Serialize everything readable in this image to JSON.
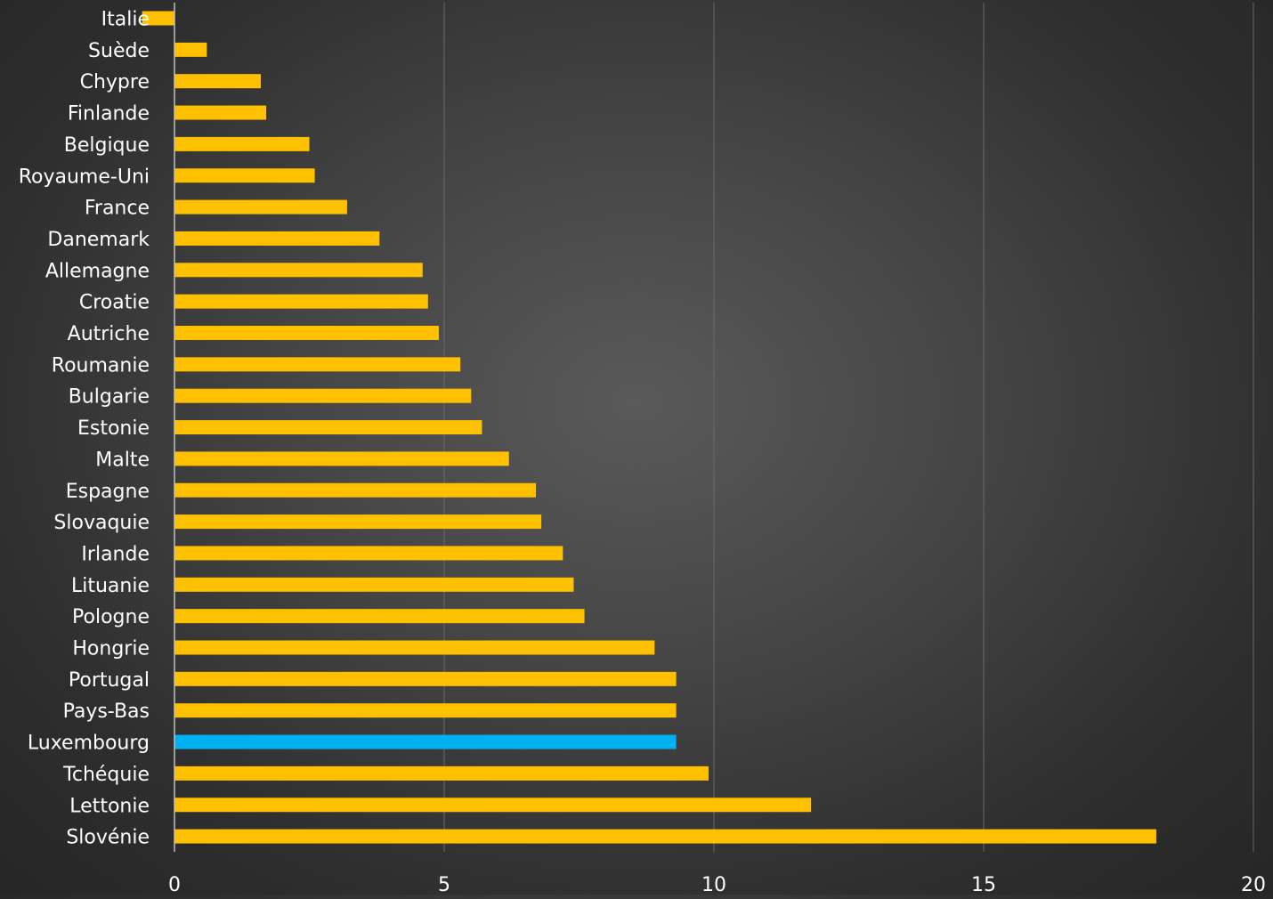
{
  "chart_data": {
    "type": "bar",
    "orientation": "horizontal",
    "categories": [
      "Italie",
      "Suède",
      "Chypre",
      "Finlande",
      "Belgique",
      "Royaume-Uni",
      "France",
      "Danemark",
      "Allemagne",
      "Croatie",
      "Autriche",
      "Roumanie",
      "Bulgarie",
      "Estonie",
      "Malte",
      "Espagne",
      "Slovaquie",
      "Irlande",
      "Lituanie",
      "Pologne",
      "Hongrie",
      "Portugal",
      "Pays-Bas",
      "Luxembourg",
      "Tchéquie",
      "Lettonie",
      "Slovénie"
    ],
    "values": [
      -0.6,
      0.6,
      1.6,
      1.7,
      2.5,
      2.6,
      3.2,
      3.8,
      4.6,
      4.7,
      4.9,
      5.3,
      5.5,
      5.7,
      6.2,
      6.7,
      6.8,
      7.2,
      7.4,
      7.6,
      8.9,
      9.3,
      9.3,
      9.3,
      9.9,
      11.8,
      18.2
    ],
    "highlight": "Luxembourg",
    "colors": {
      "bar": "#FFC000",
      "highlight": "#00B0F0",
      "grid": "#6a6a6a",
      "text": "#ffffff"
    },
    "xlim": [
      0,
      20
    ],
    "xticks": [
      0,
      5,
      10,
      15,
      20
    ],
    "grid": true,
    "title": "",
    "xlabel": "",
    "ylabel": ""
  }
}
